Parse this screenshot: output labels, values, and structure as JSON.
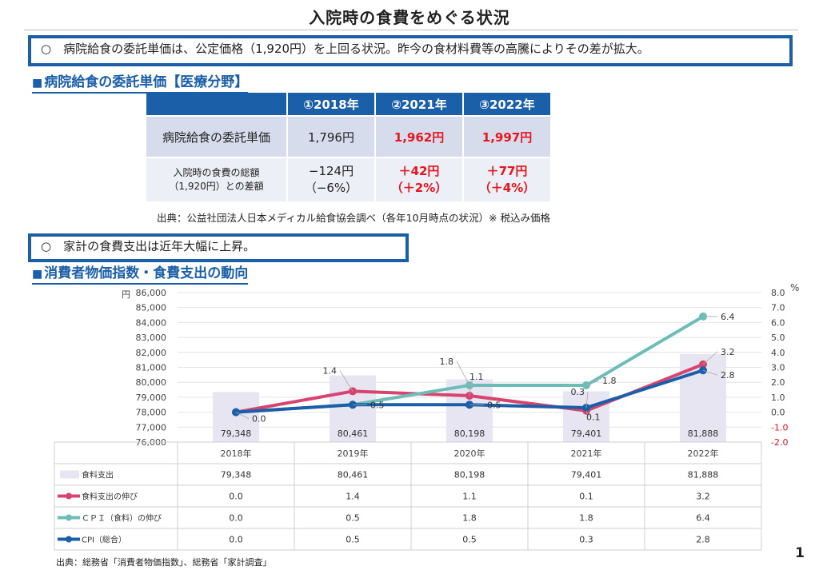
{
  "title": "入院時の食費をめぐる状況",
  "box1": "○　病院給食の委託単価は、公定価格（1,920円）を上回る状況。昨今の食材料費等の高騰によりその差が拡大。",
  "section1": {
    "marker": "■",
    "title": "病院給食の委託単価【医療分野】"
  },
  "cost_table": {
    "headers": [
      "",
      "①2018年",
      "②2021年",
      "③2022年"
    ],
    "row1": {
      "label": "病院給食の委託単価",
      "values": [
        "1,796円",
        "1,962円",
        "1,997円"
      ]
    },
    "row2": {
      "label_line1": "入院時の食費の総額",
      "label_line2": "（1,920円）との差額",
      "line1": [
        "−124円",
        "＋42円",
        "＋77円"
      ],
      "line2": [
        "（−6%）",
        "（＋2%）",
        "（＋4%）"
      ]
    },
    "highlight_color": "#e8141e"
  },
  "source1": "出典：公益社団法人日本メディカル給食協会調べ（各年10月時点の状況）※ 税込み価格",
  "box2": "○　家計の食費支出は近年大幅に上昇。",
  "section2": {
    "marker": "■",
    "title": "消費者物価指数・食費支出の動向"
  },
  "chart_data": {
    "type": "bar+line",
    "categories": [
      "2018年",
      "2019年",
      "2020年",
      "2021年",
      "2022年"
    ],
    "left_axis": {
      "unit": "円",
      "min": 76000,
      "max": 86000,
      "step": 1000,
      "ticks": [
        "76,000",
        "77,000",
        "78,000",
        "79,000",
        "80,000",
        "81,000",
        "82,000",
        "83,000",
        "84,000",
        "85,000",
        "86,000"
      ]
    },
    "right_axis": {
      "unit": "%",
      "min": -2.0,
      "max": 8.0,
      "step": 1.0,
      "ticks": [
        "-2.0",
        "-1.0",
        "0.0",
        "1.0",
        "2.0",
        "3.0",
        "4.0",
        "5.0",
        "6.0",
        "7.0",
        "8.0"
      ]
    },
    "bars": {
      "name": "食料支出",
      "values": [
        79348,
        80461,
        80198,
        79401,
        81888
      ],
      "labels": [
        "79,348",
        "80,461",
        "80,198",
        "79,401",
        "81,888"
      ],
      "color": "#e6e5f1"
    },
    "lines": [
      {
        "name": "食料支出の伸び",
        "values": [
          0.0,
          1.4,
          1.1,
          0.1,
          3.2
        ],
        "labels": [
          "0.0",
          "1.4",
          "1.1",
          "0.1",
          "3.2"
        ],
        "color": "#d6456f"
      },
      {
        "name": "ＣＰＩ（食料）の伸び",
        "values": [
          0.0,
          0.5,
          1.8,
          1.8,
          6.4
        ],
        "labels": [
          "0.0",
          "0.5",
          "1.8",
          "1.8",
          "6.4"
        ],
        "color": "#6cbcb8"
      },
      {
        "name": "CPI（総合）",
        "values": [
          0.0,
          0.5,
          0.5,
          0.3,
          2.8
        ],
        "labels": [
          "0.0",
          "0.5",
          "0.5",
          "0.3",
          "2.8"
        ],
        "color": "#1b5fa8"
      }
    ],
    "colors": {
      "negative_tick": "#e8141e",
      "grid": "#e4e4e4"
    }
  },
  "source2": "出典：総務省「消費者物価指数」、総務省「家計調査」",
  "page_number": "1"
}
